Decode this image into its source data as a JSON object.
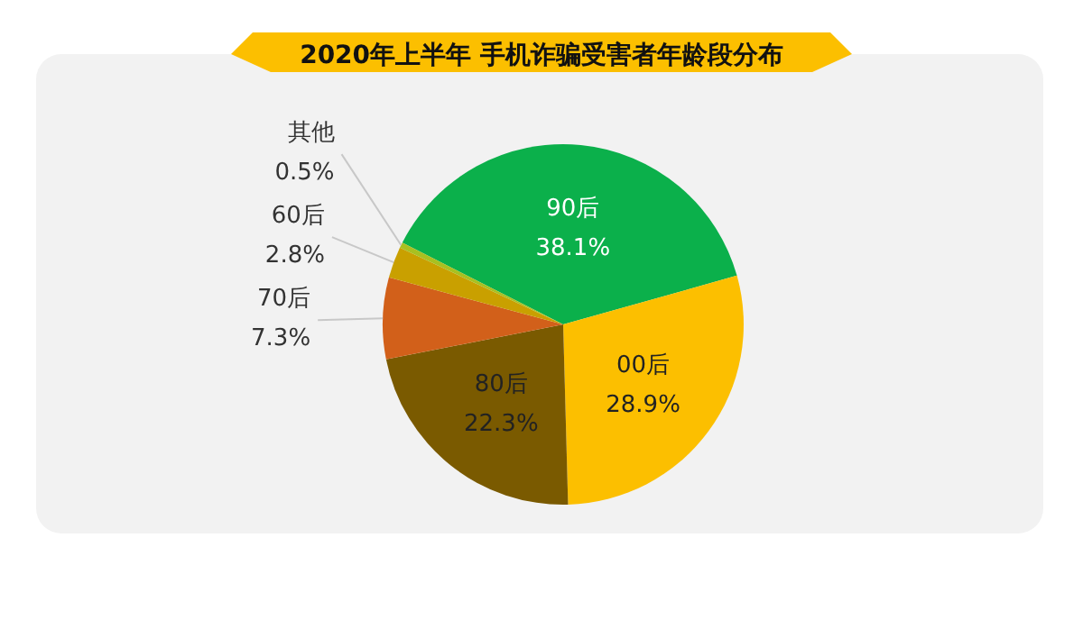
{
  "chart_data": {
    "type": "pie",
    "title": "2020年上半年 手机诈骗受害者年龄段分布",
    "categories": [
      "90后",
      "00后",
      "80后",
      "70后",
      "60后",
      "其他"
    ],
    "values": [
      38.1,
      28.9,
      22.3,
      7.3,
      2.8,
      0.5
    ],
    "value_labels": [
      "38.1%",
      "28.9%",
      "22.3%",
      "7.3%",
      "2.8%",
      "0.5%"
    ],
    "colors": [
      "#0bb04b",
      "#fcbf00",
      "#7a5a00",
      "#d2601a",
      "#c9a000",
      "#a8c020"
    ]
  }
}
